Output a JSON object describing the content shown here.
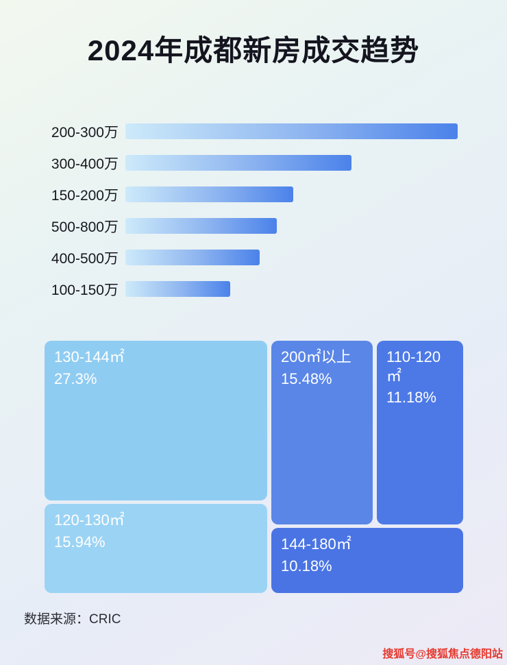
{
  "page": {
    "title": "2024年成都新房成交趋势",
    "source": "数据来源：CRIC",
    "watermark": "搜狐号@搜狐焦点德阳站"
  },
  "chart_data": [
    {
      "type": "bar",
      "orientation": "horizontal",
      "title": "2024年成都新房成交趋势",
      "categories": [
        "200-300万",
        "300-400万",
        "150-200万",
        "500-800万",
        "400-500万",
        "100-150万"
      ],
      "values": [
        100,
        68,
        50.5,
        45.5,
        40.5,
        31.5
      ],
      "value_scale": "relative bar length, max = 100 (no numeric axis shown)",
      "bar_gradient": [
        "#cdeafa",
        "#4b82ea"
      ],
      "legend": "none",
      "grid": "off"
    },
    {
      "type": "treemap",
      "items": [
        {
          "label": "130-144㎡",
          "percent": "27.3%",
          "value": 27.3,
          "color": "#8fccf2"
        },
        {
          "label": "120-130㎡",
          "percent": "15.94%",
          "value": 15.94,
          "color": "#9bd3f4"
        },
        {
          "label": "200㎡以上",
          "percent": "15.48%",
          "value": 15.48,
          "color": "#5a86e8"
        },
        {
          "label": "110-120㎡",
          "percent": "11.18%",
          "value": 11.18,
          "color": "#4c79e6"
        },
        {
          "label": "144-180㎡",
          "percent": "10.18%",
          "value": 10.18,
          "color": "#4a74e3"
        }
      ]
    }
  ]
}
